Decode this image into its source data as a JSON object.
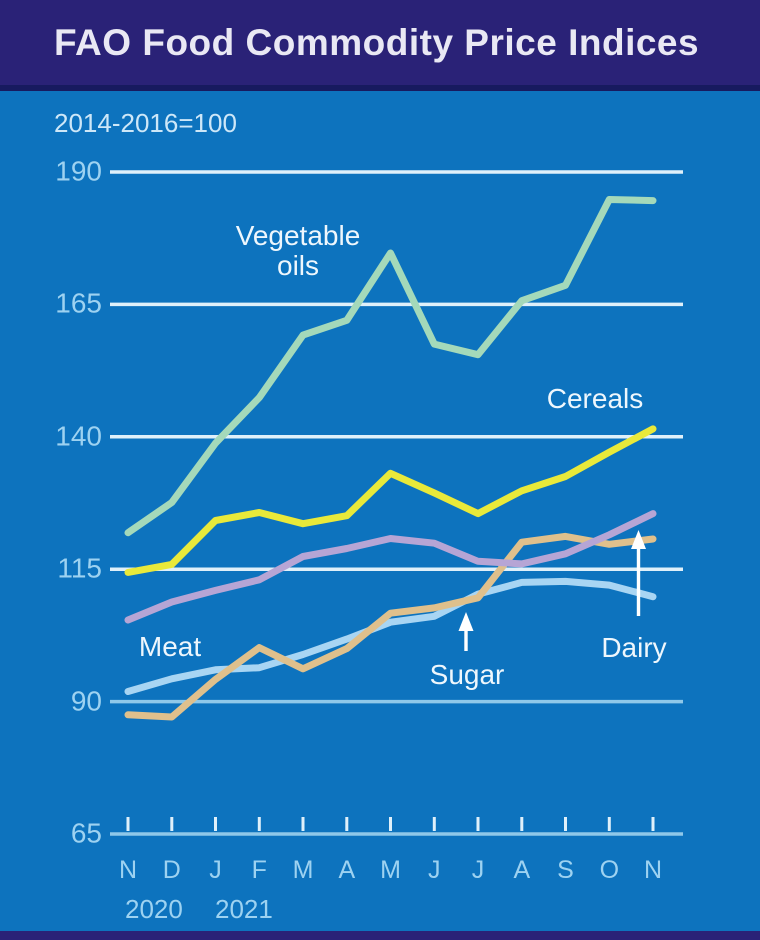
{
  "header": {
    "title": "FAO Food Commodity Price Indices"
  },
  "subtitle": "2014-2016=100",
  "chart_data": {
    "type": "line",
    "title": "FAO Food Commodity Price Indices",
    "subtitle": "2014-2016=100",
    "grid": true,
    "legend": "inline-labels-with-arrows",
    "x_axis": {
      "tick_labels": [
        "N",
        "D",
        "J",
        "F",
        "M",
        "A",
        "M",
        "J",
        "J",
        "A",
        "S",
        "O",
        "N"
      ],
      "year_labels": [
        "2020",
        "2021"
      ]
    },
    "y_axis": {
      "ticks": [
        190,
        165,
        140,
        115,
        90,
        65
      ],
      "range": [
        65,
        190
      ]
    },
    "series": [
      {
        "name": "Vegetable oils",
        "color": "#a4d9ba",
        "values": [
          121.9,
          127.6,
          138.8,
          147.4,
          159.2,
          162.0,
          174.7,
          157.5,
          155.5,
          165.7,
          168.6,
          184.8,
          184.6
        ]
      },
      {
        "name": "Cereals",
        "color": "#e9e93a",
        "values": [
          114.4,
          115.9,
          124.2,
          125.7,
          123.6,
          125.1,
          133.1,
          129.4,
          125.5,
          129.8,
          132.5,
          137.1,
          141.5
        ]
      },
      {
        "name": "Dairy",
        "color": "#b6a5d5",
        "values": [
          105.4,
          108.8,
          111.0,
          113.0,
          117.4,
          118.9,
          120.8,
          119.9,
          116.5,
          116.0,
          117.9,
          121.5,
          125.5
        ]
      },
      {
        "name": "Meat",
        "color": "#a8d5f3",
        "values": [
          91.9,
          94.3,
          96.0,
          96.4,
          98.9,
          101.8,
          105.0,
          106.1,
          110.3,
          112.5,
          112.7,
          112.0,
          109.8
        ]
      },
      {
        "name": "Sugar",
        "color": "#dfc08c",
        "values": [
          87.5,
          87.1,
          94.2,
          100.2,
          96.2,
          100.0,
          106.7,
          107.7,
          109.6,
          120.1,
          121.2,
          119.7,
          120.7
        ]
      }
    ],
    "labels": {
      "vegetable_oils": [
        "Vegetable",
        "oils"
      ],
      "cereals": "Cereals",
      "meat": "Meat",
      "sugar": "Sugar",
      "dairy": "Dairy"
    },
    "colors": {
      "background": "#0d73be",
      "band": "#2a2277",
      "band_edge": "#171a5f",
      "title_text": "#e9e8f4",
      "subtitle_text": "#cde7f8",
      "axis_text": "#9dd2f1",
      "label_text": "#eef7fd",
      "grid_upper": "#dff0fa",
      "grid_lower": "#8fc8e9",
      "tick": "#dff0fa",
      "arrow": "#ffffff"
    }
  }
}
